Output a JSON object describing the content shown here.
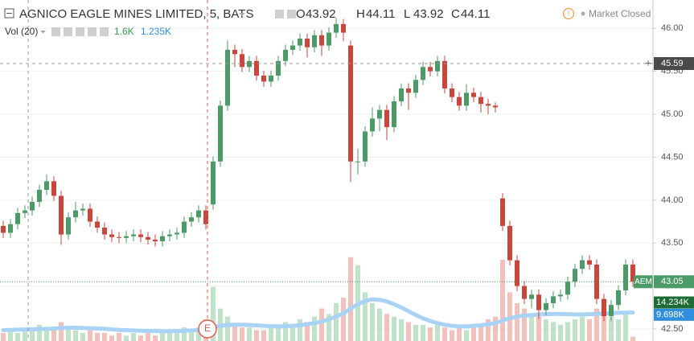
{
  "chart_data": {
    "type": "candlestick",
    "title": "AGNICO EAGLE MINES LIMITED, 5, BATS",
    "readout": [
      {
        "name": "O",
        "value": 43.92
      },
      {
        "name": "H",
        "value": 44.11
      },
      {
        "name": "L",
        "value": 43.92
      },
      {
        "name": "C",
        "value": 44.11
      }
    ],
    "status": "Market Closed",
    "up_color": "#4c9a68",
    "down_color": "#c9463d",
    "ylim": [
      42.36,
      46.33
    ],
    "yticks": [
      {
        "value": 42.5,
        "label": "42.50"
      },
      {
        "value": 43,
        "label": "43.00"
      },
      {
        "value": 43.5,
        "label": "43.50"
      },
      {
        "value": 44,
        "label": "44.00"
      },
      {
        "value": 44.5,
        "label": "44.50"
      },
      {
        "value": 45,
        "label": "45.00"
      },
      {
        "value": 45.5,
        "label": "45.50"
      },
      {
        "value": 46,
        "label": "46.00"
      }
    ],
    "grid": true,
    "open": [
      43.7,
      43.62,
      43.72,
      43.85,
      43.88,
      43.98,
      44.12,
      44.22,
      44.05,
      43.6,
      43.8,
      43.88,
      43.9,
      43.75,
      43.68,
      43.6,
      43.57,
      43.56,
      43.58,
      43.6,
      43.57,
      43.54,
      43.52,
      43.58,
      43.6,
      43.62,
      43.75,
      43.8,
      43.88,
      43.95,
      44.45,
      45.1,
      45.75,
      45.7,
      45.55,
      45.62,
      45.45,
      45.38,
      45.45,
      45.62,
      45.75,
      45.8,
      45.88,
      45.78,
      45.92,
      45.8,
      45.95,
      46.05,
      45.8,
      44.45,
      44.45,
      44.8,
      44.95,
      45.05,
      44.85,
      45.15,
      45.3,
      45.25,
      45.4,
      45.55,
      45.5,
      45.62,
      45.3,
      45.2,
      45.1,
      45.25,
      45.2,
      45.12,
      45.1,
      44.02,
      43.7,
      43.3,
      43.0,
      42.85,
      42.9,
      42.72,
      42.8,
      42.88,
      42.9,
      43.05,
      43.2,
      43.3,
      43.25,
      42.85,
      42.65,
      42.78,
      42.95,
      43.25
    ],
    "high": [
      43.76,
      43.78,
      43.91,
      43.94,
      44.04,
      44.18,
      44.3,
      44.28,
      44.11,
      43.86,
      43.98,
      43.96,
      43.96,
      43.81,
      43.74,
      43.66,
      43.63,
      43.64,
      43.66,
      43.66,
      43.63,
      43.6,
      43.64,
      43.66,
      43.68,
      43.81,
      43.86,
      43.94,
      43.94,
      44.51,
      45.16,
      45.86,
      45.81,
      45.76,
      45.68,
      45.68,
      45.51,
      45.51,
      45.68,
      45.81,
      45.86,
      45.94,
      45.94,
      45.98,
      45.98,
      46.01,
      46.12,
      46.11,
      45.86,
      44.6,
      44.86,
      45.08,
      45.11,
      45.11,
      45.21,
      45.36,
      45.36,
      45.46,
      45.61,
      45.61,
      45.68,
      45.68,
      45.36,
      45.26,
      45.35,
      45.31,
      45.26,
      45.18,
      45.14,
      44.08,
      43.76,
      43.36,
      43.06,
      42.96,
      42.96,
      42.86,
      42.94,
      42.96,
      43.11,
      43.26,
      43.36,
      43.36,
      43.31,
      42.91,
      42.84,
      43.01,
      43.31,
      43.31
    ],
    "low": [
      43.56,
      43.56,
      43.66,
      43.79,
      43.82,
      43.92,
      44.06,
      43.99,
      43.48,
      43.54,
      43.74,
      43.82,
      43.69,
      43.62,
      43.54,
      43.51,
      43.5,
      43.5,
      43.52,
      43.51,
      43.48,
      43.46,
      43.46,
      43.52,
      43.54,
      43.56,
      43.69,
      43.74,
      43.66,
      43.89,
      44.39,
      45.04,
      45.55,
      45.49,
      45.49,
      45.39,
      45.32,
      45.32,
      45.39,
      45.56,
      45.69,
      45.74,
      45.66,
      45.72,
      45.68,
      45.74,
      45.89,
      45.85,
      44.21,
      44.3,
      44.39,
      44.74,
      44.8,
      44.7,
      44.79,
      45.09,
      45.05,
      45.19,
      45.34,
      45.44,
      45.44,
      45.24,
      45.14,
      45.04,
      45.04,
      45.14,
      45.02,
      45.0,
      45.02,
      43.64,
      43.24,
      42.94,
      42.79,
      42.74,
      42.62,
      42.66,
      42.74,
      42.82,
      42.84,
      42.99,
      43.14,
      43.19,
      42.79,
      42.59,
      42.59,
      42.72,
      42.89,
      42.99
    ],
    "close": [
      43.62,
      43.72,
      43.85,
      43.88,
      43.98,
      44.12,
      44.22,
      44.05,
      43.6,
      43.8,
      43.88,
      43.9,
      43.75,
      43.68,
      43.6,
      43.57,
      43.56,
      43.58,
      43.6,
      43.57,
      43.54,
      43.52,
      43.58,
      43.6,
      43.62,
      43.75,
      43.8,
      43.88,
      43.72,
      44.45,
      45.1,
      45.75,
      45.7,
      45.55,
      45.62,
      45.45,
      45.38,
      45.45,
      45.62,
      45.75,
      45.8,
      45.88,
      45.78,
      45.92,
      45.8,
      45.95,
      46.05,
      45.95,
      44.45,
      44.45,
      44.8,
      44.95,
      45.05,
      44.85,
      45.15,
      45.3,
      45.25,
      45.4,
      45.55,
      45.5,
      45.62,
      45.3,
      45.2,
      45.1,
      45.25,
      45.2,
      45.12,
      45.1,
      45.08,
      43.7,
      43.3,
      43.0,
      42.85,
      42.9,
      42.72,
      42.8,
      42.88,
      42.9,
      43.05,
      43.2,
      43.3,
      43.25,
      42.85,
      42.65,
      42.78,
      42.95,
      43.25,
      43.05
    ],
    "crosshair": 45.59,
    "last_price": {
      "symbol": "AEM",
      "value": 43.05
    },
    "event": "E",
    "volume": {
      "name": "Vol (20)",
      "readout": [
        {
          "value": 1.6,
          "label": "1.6K"
        },
        {
          "value": 1.235,
          "label": "1.235K"
        }
      ],
      "readout_colors": [
        "#2e9e4a",
        "#2f8fdc"
      ],
      "y2lim": [
        0,
        126
      ],
      "scale_labels": [
        {
          "value": 14.234,
          "label": "14.234K",
          "color": "#1f6b35"
        },
        {
          "value": 9.698,
          "label": "9.698K",
          "color": "#2f8fdc"
        }
      ],
      "up_color": "#bfe2c9",
      "down_color": "#f2c1bc",
      "ma_color": "#a9d3f4",
      "values": [
        3,
        4,
        3,
        5,
        4,
        6,
        5,
        4,
        7,
        5,
        4,
        3,
        4,
        3,
        3,
        2,
        3,
        2,
        3,
        2,
        3,
        2,
        3,
        3,
        4,
        5,
        4,
        5,
        8,
        20,
        12,
        9,
        6,
        5,
        5,
        4,
        4,
        5,
        6,
        7,
        6,
        8,
        7,
        9,
        12,
        10,
        14,
        16,
        31,
        28,
        18,
        14,
        12,
        10,
        9,
        8,
        7,
        6,
        6,
        5,
        6,
        5,
        4,
        5,
        4,
        5,
        6,
        8,
        9,
        30,
        18,
        14,
        12,
        10,
        9,
        8,
        7,
        6,
        7,
        8,
        9,
        8,
        12,
        14,
        9,
        8,
        10,
        1.6
      ],
      "ma": [
        4.0,
        4.1,
        4.2,
        4.3,
        4.3,
        4.4,
        4.5,
        4.6,
        4.8,
        4.9,
        4.9,
        4.8,
        4.7,
        4.6,
        4.5,
        4.3,
        4.1,
        4.0,
        3.9,
        3.8,
        3.7,
        3.7,
        3.6,
        3.6,
        3.7,
        3.8,
        3.9,
        4.1,
        4.4,
        5.2,
        5.6,
        5.9,
        6.0,
        6.0,
        5.9,
        5.8,
        5.6,
        5.5,
        5.4,
        5.5,
        5.6,
        5.8,
        6.2,
        6.6,
        7.2,
        8.0,
        9.0,
        10.2,
        12.0,
        13.6,
        14.8,
        15.4,
        15.2,
        14.6,
        13.6,
        12.4,
        11.0,
        9.6,
        8.4,
        7.4,
        6.6,
        6.0,
        5.6,
        5.4,
        5.4,
        5.6,
        5.8,
        6.2,
        6.6,
        7.6,
        8.4,
        9.0,
        9.4,
        9.6,
        9.8,
        9.9,
        10.0,
        10.0,
        9.9,
        9.8,
        9.8,
        9.9,
        10.0,
        10.2,
        10.3,
        10.4,
        10.5,
        10.5
      ]
    }
  }
}
